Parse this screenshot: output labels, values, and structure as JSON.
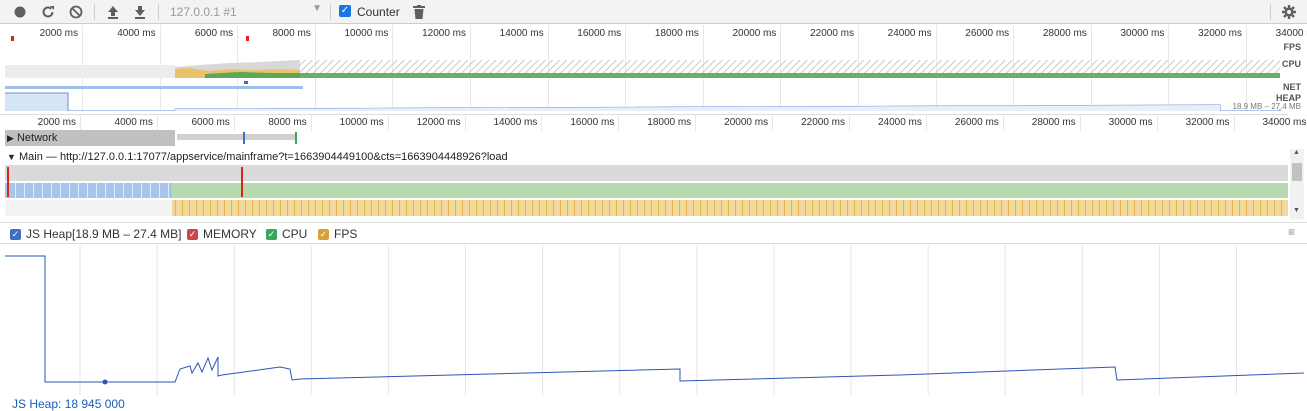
{
  "toolbar": {
    "record_icon": "record-icon",
    "reload_icon": "reload-icon",
    "clear_icon": "clear-icon",
    "load_icon": "upload-icon",
    "save_icon": "download-icon",
    "target": "127.0.0.1 #1",
    "counter_label": "Counter",
    "counter_checked": true,
    "trash_icon": "trash-icon",
    "settings_icon": "gear-icon"
  },
  "overview": {
    "ticks": [
      "2000 ms",
      "4000 ms",
      "6000 ms",
      "8000 ms",
      "10000 ms",
      "12000 ms",
      "14000 ms",
      "16000 ms",
      "18000 ms",
      "20000 ms",
      "22000 ms",
      "24000 ms",
      "26000 ms",
      "28000 ms",
      "30000 ms",
      "32000 ms",
      "34000 ms"
    ],
    "fps_label": "FPS",
    "cpu_label": "CPU",
    "net_label": "NET",
    "heap_label": "HEAP",
    "heap_range": "18.9 MB – 27.4 MB"
  },
  "timeline": {
    "ticks": [
      "2000 ms",
      "4000 ms",
      "6000 ms",
      "8000 ms",
      "10000 ms",
      "12000 ms",
      "14000 ms",
      "16000 ms",
      "18000 ms",
      "20000 ms",
      "22000 ms",
      "24000 ms",
      "26000 ms",
      "28000 ms",
      "30000 ms",
      "32000 ms",
      "34000 ms"
    ],
    "network_label": "Network",
    "main_label": "Main — http://127.0.0.1:17077/appservice/mainframe?t=1663904449100&cts=1663904448926?load"
  },
  "legend": {
    "js_heap": "JS Heap[18.9 MB – 27.4 MB]",
    "memory": "MEMORY",
    "cpu": "CPU",
    "fps": "FPS",
    "colors": {
      "js_heap": "#3b6ec4",
      "memory": "#c8494a",
      "cpu": "#3aa757",
      "fps": "#d4a03c"
    }
  },
  "heap_status": "JS Heap: 18 945 000"
}
